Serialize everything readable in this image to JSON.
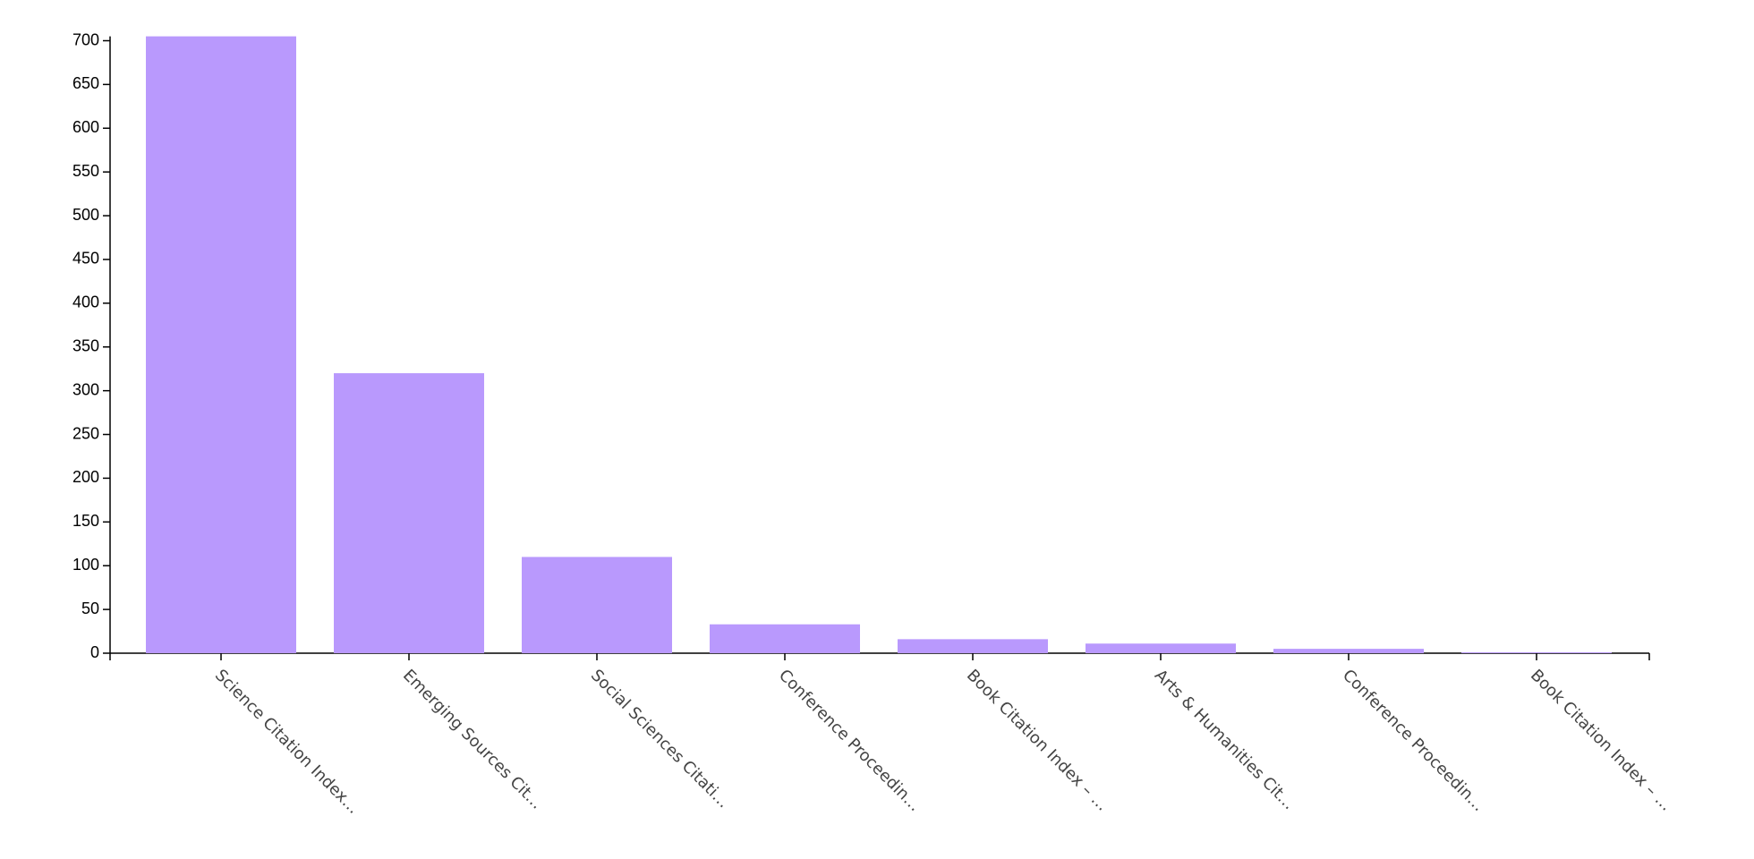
{
  "chart_data": {
    "type": "bar",
    "categories": [
      "Science Citation Index…",
      "Emerging Sources Cit…",
      "Social Sciences Citati…",
      "Conference Proceedin…",
      "Book Citation Index – …",
      "Arts & Humanities Cit…",
      "Conference Proceedin…",
      "Book Citation Index – …"
    ],
    "values": [
      705,
      320,
      110,
      33,
      16,
      11,
      5,
      1
    ],
    "color": "#b999fd",
    "ylim": [
      0,
      705
    ],
    "yticks": [
      0,
      50,
      100,
      150,
      200,
      250,
      300,
      350,
      400,
      450,
      500,
      550,
      600,
      650,
      700
    ]
  }
}
